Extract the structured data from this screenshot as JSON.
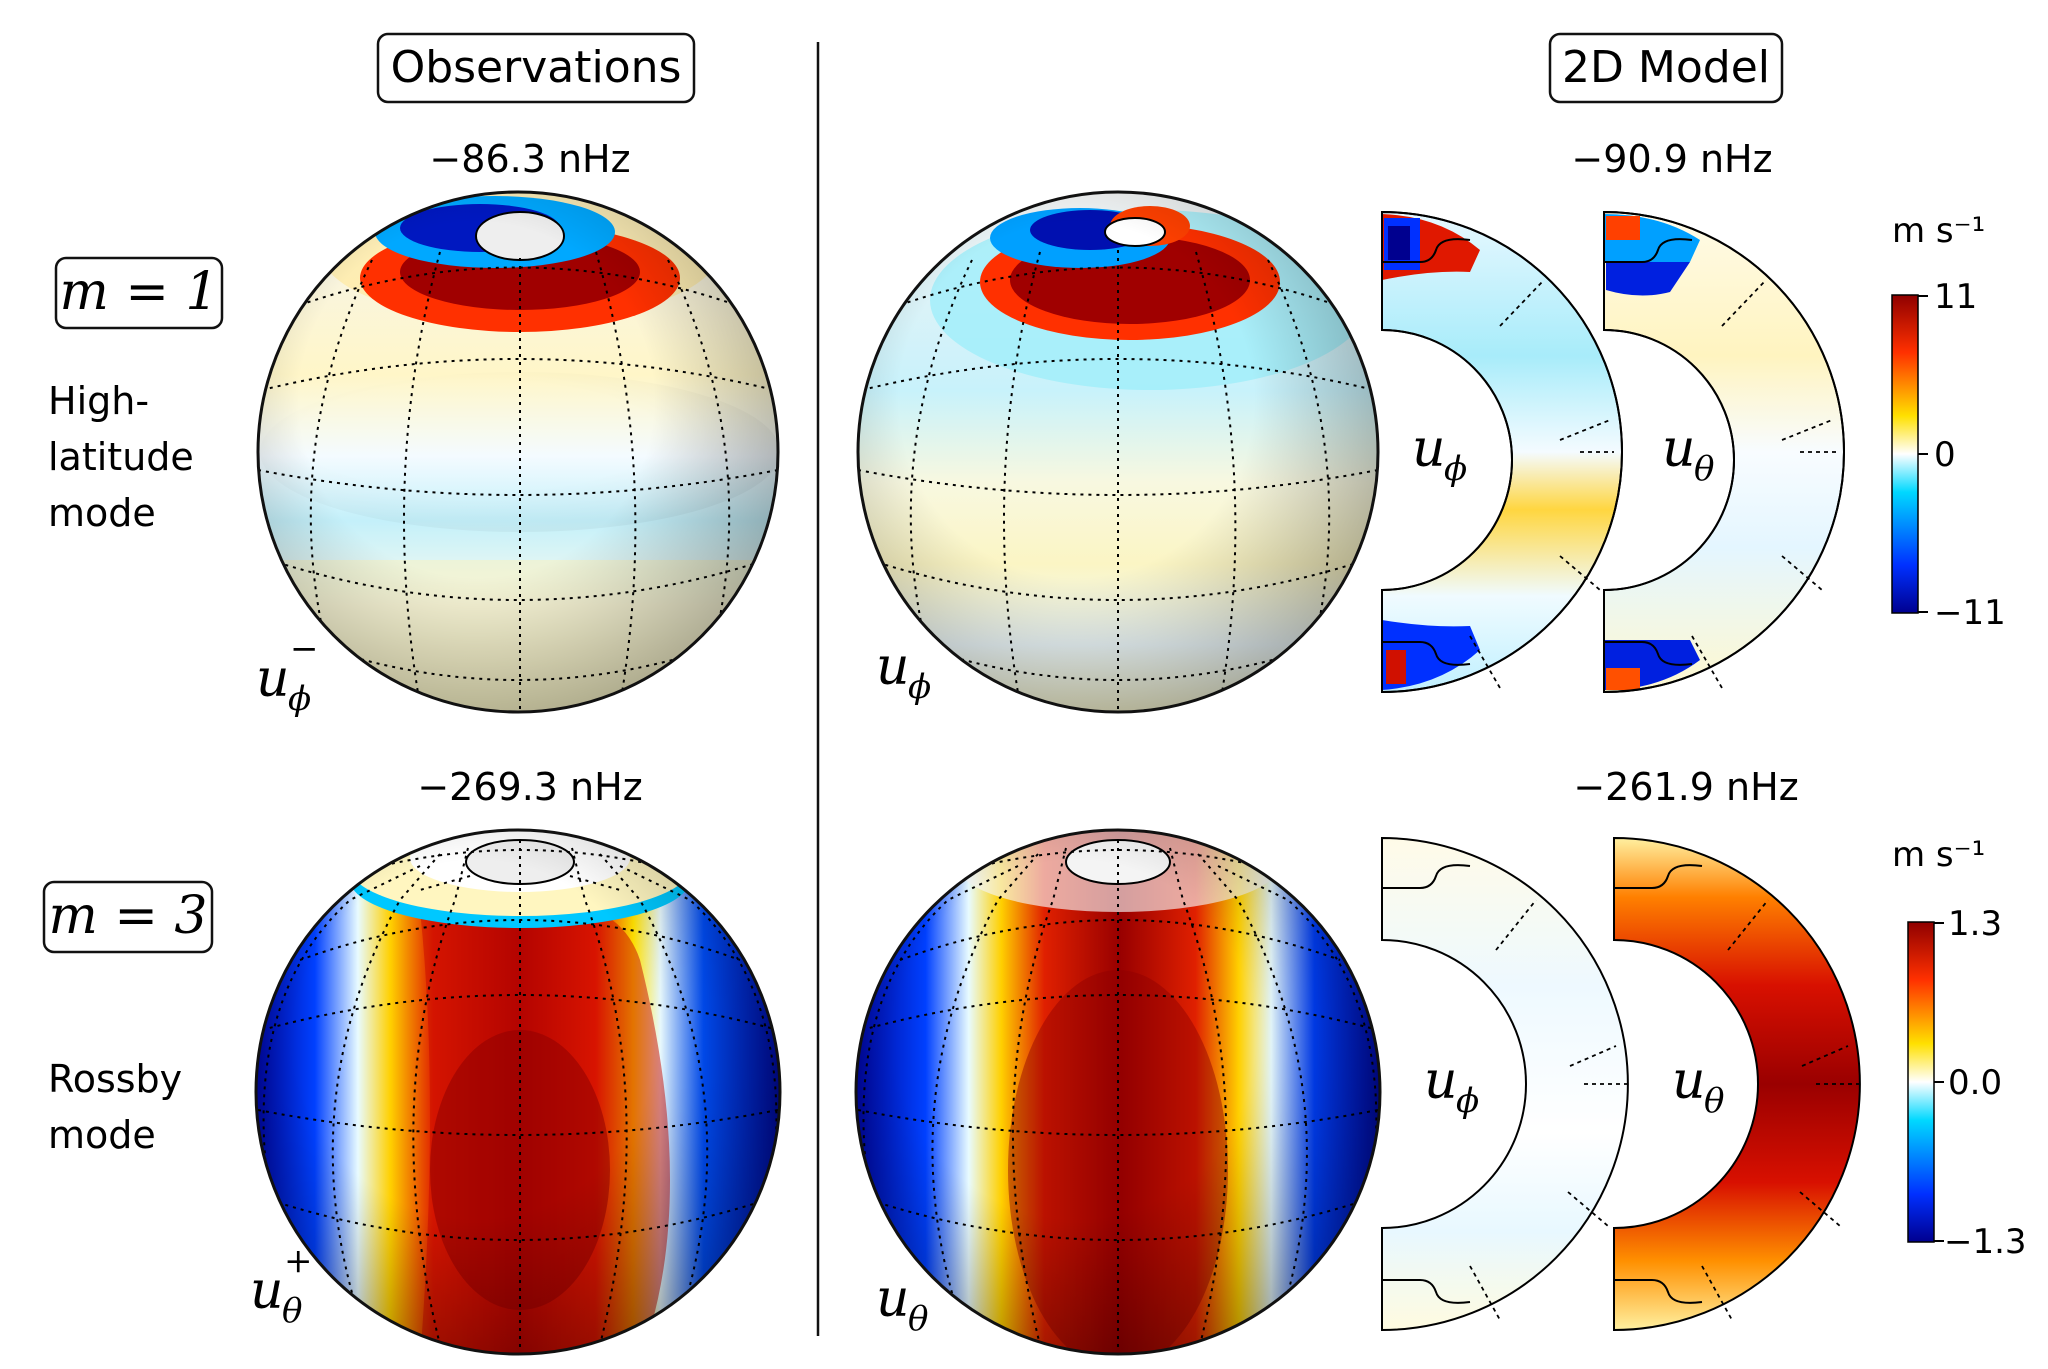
{
  "headers": {
    "observations": "Observations",
    "model": "2D Model"
  },
  "rows": [
    {
      "mode_label": "m = 1",
      "description": [
        "High-",
        "latitude",
        "mode"
      ],
      "obs_freq": "−86.3 nHz",
      "model_freq": "−90.9 nHz",
      "obs_var": {
        "base": "u",
        "sub": "ϕ",
        "sup": "−"
      },
      "model_var": {
        "base": "u",
        "sub": "ϕ"
      },
      "slice_labels": [
        {
          "base": "u",
          "sub": "ϕ"
        },
        {
          "base": "u",
          "sub": "θ"
        }
      ],
      "colorbar": {
        "unit": "m s⁻¹",
        "max": "11",
        "mid": "0",
        "min": "−11"
      }
    },
    {
      "mode_label": "m = 3",
      "description": [
        "Rossby",
        "mode"
      ],
      "obs_freq": "−269.3 nHz",
      "model_freq": "−261.9 nHz",
      "obs_var": {
        "base": "u",
        "sub": "θ",
        "sup": "+"
      },
      "model_var": {
        "base": "u",
        "sub": "θ"
      },
      "slice_labels": [
        {
          "base": "u",
          "sub": "ϕ"
        },
        {
          "base": "u",
          "sub": "θ"
        }
      ],
      "colorbar": {
        "unit": "m s⁻¹",
        "max": "1.3",
        "mid": "0.0",
        "min": "−1.3"
      }
    }
  ],
  "colormap": [
    "#00008f",
    "#0030ff",
    "#00c8ff",
    "#ffffff",
    "#ffe000",
    "#ff4000",
    "#8f0000"
  ]
}
